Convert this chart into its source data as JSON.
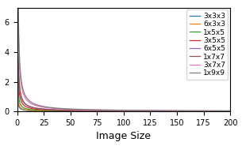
{
  "series": [
    {
      "label": "3x3x3",
      "color": "#1f77b4",
      "cin": 3,
      "ksize": 3
    },
    {
      "label": "6x3x3",
      "color": "#ff7f0e",
      "cin": 6,
      "ksize": 3
    },
    {
      "label": "1x5x5",
      "color": "#2ca02c",
      "cin": 1,
      "ksize": 5
    },
    {
      "label": "3x5x5",
      "color": "#d62728",
      "cin": 3,
      "ksize": 5
    },
    {
      "label": "6x5x5",
      "color": "#9467bd",
      "cin": 6,
      "ksize": 5
    },
    {
      "label": "1x7x7",
      "color": "#8c564b",
      "cin": 1,
      "ksize": 7
    },
    {
      "label": "3x7x7",
      "color": "#e377c2",
      "cin": 3,
      "ksize": 7
    },
    {
      "label": "1x9x9",
      "color": "#7f7f7f",
      "cin": 1,
      "ksize": 9
    }
  ],
  "xlabel": "Image Size",
  "xlim": [
    0,
    200
  ],
  "ylim": [
    0,
    7
  ],
  "figsize": [
    3.05,
    1.85
  ],
  "dpi": 100,
  "legend_fontsize": 6.5,
  "tick_fontsize": 7,
  "xlabel_fontsize": 9
}
